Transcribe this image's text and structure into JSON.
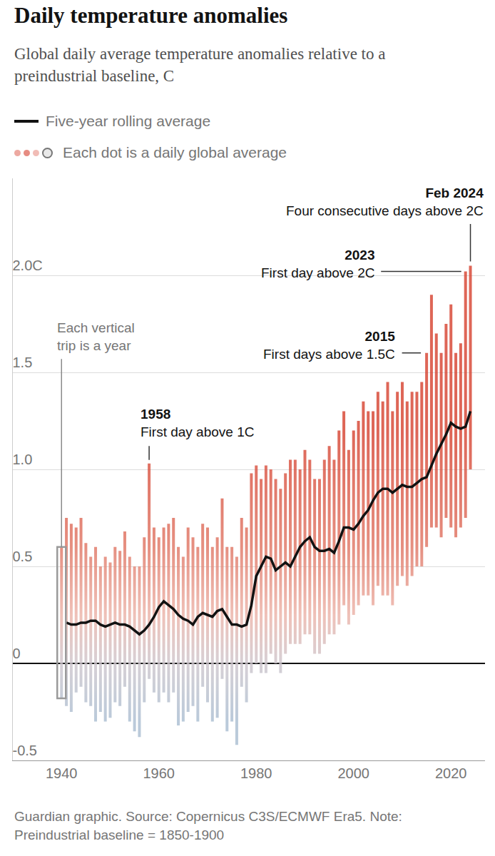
{
  "chart_data": {
    "type": "scatter",
    "title": "Daily temperature anomalies",
    "subtitle": "Global daily average temperature anomalies relative to a preindustrial baseline, C",
    "source": "Guardian graphic. Source: Copernicus C3S/ECMWF Era5. Note: Preindustrial baseline = 1850-1900",
    "x": [
      1940,
      1941,
      1942,
      1943,
      1944,
      1945,
      1946,
      1947,
      1948,
      1949,
      1950,
      1951,
      1952,
      1953,
      1954,
      1955,
      1956,
      1957,
      1958,
      1959,
      1960,
      1961,
      1962,
      1963,
      1964,
      1965,
      1966,
      1967,
      1968,
      1969,
      1970,
      1971,
      1972,
      1973,
      1974,
      1975,
      1976,
      1977,
      1978,
      1979,
      1980,
      1981,
      1982,
      1983,
      1984,
      1985,
      1986,
      1987,
      1988,
      1989,
      1990,
      1991,
      1992,
      1993,
      1994,
      1995,
      1996,
      1997,
      1998,
      1999,
      2000,
      2001,
      2002,
      2003,
      2004,
      2005,
      2006,
      2007,
      2008,
      2009,
      2010,
      2011,
      2012,
      2013,
      2014,
      2015,
      2016,
      2017,
      2018,
      2019,
      2020,
      2021,
      2022,
      2023,
      2024
    ],
    "series": [
      {
        "name": "Five-year rolling average",
        "type": "line",
        "color": "#121212",
        "values": [
          null,
          0.21,
          0.2,
          0.2,
          0.21,
          0.21,
          0.22,
          0.22,
          0.2,
          0.19,
          0.2,
          0.21,
          0.2,
          0.2,
          0.19,
          0.17,
          0.15,
          0.17,
          0.2,
          0.24,
          0.29,
          0.32,
          0.3,
          0.28,
          0.25,
          0.23,
          0.22,
          0.2,
          0.24,
          0.26,
          0.25,
          0.24,
          0.27,
          0.28,
          0.24,
          0.2,
          0.2,
          0.19,
          0.2,
          0.3,
          0.45,
          0.5,
          0.55,
          0.54,
          0.48,
          0.5,
          0.52,
          0.5,
          0.55,
          0.6,
          0.63,
          0.65,
          0.6,
          0.58,
          0.58,
          0.59,
          0.57,
          0.63,
          0.7,
          0.7,
          0.69,
          0.72,
          0.76,
          0.79,
          0.84,
          0.88,
          0.9,
          0.9,
          0.88,
          0.9,
          0.92,
          0.91,
          0.91,
          0.93,
          0.95,
          0.96,
          1.02,
          1.08,
          1.13,
          1.18,
          1.24,
          1.22,
          1.21,
          1.22,
          1.3
        ]
      },
      {
        "name": "Each dot is a daily global average",
        "type": "range",
        "color": "#d6402e",
        "values": [
          [
            -0.18,
            0.6
          ],
          [
            -0.22,
            0.75
          ],
          [
            -0.25,
            0.72
          ],
          [
            -0.15,
            0.7
          ],
          [
            -0.12,
            0.75
          ],
          [
            -0.2,
            0.62
          ],
          [
            -0.22,
            0.55
          ],
          [
            -0.3,
            0.6
          ],
          [
            -0.25,
            0.5
          ],
          [
            -0.3,
            0.55
          ],
          [
            -0.28,
            0.52
          ],
          [
            -0.2,
            0.6
          ],
          [
            -0.22,
            0.58
          ],
          [
            -0.12,
            0.68
          ],
          [
            -0.3,
            0.55
          ],
          [
            -0.35,
            0.5
          ],
          [
            -0.38,
            0.5
          ],
          [
            -0.2,
            0.65
          ],
          [
            -0.08,
            1.03
          ],
          [
            -0.15,
            0.7
          ],
          [
            -0.2,
            0.65
          ],
          [
            -0.15,
            0.7
          ],
          [
            -0.2,
            0.72
          ],
          [
            -0.15,
            0.75
          ],
          [
            -0.32,
            0.6
          ],
          [
            -0.3,
            0.55
          ],
          [
            -0.25,
            0.7
          ],
          [
            -0.22,
            0.65
          ],
          [
            -0.3,
            0.6
          ],
          [
            -0.12,
            0.72
          ],
          [
            -0.2,
            0.7
          ],
          [
            -0.3,
            0.6
          ],
          [
            -0.28,
            0.65
          ],
          [
            -0.08,
            0.85
          ],
          [
            -0.35,
            0.6
          ],
          [
            -0.3,
            0.6
          ],
          [
            -0.42,
            0.55
          ],
          [
            -0.12,
            0.75
          ],
          [
            -0.2,
            0.7
          ],
          [
            -0.05,
            0.98
          ],
          [
            0.0,
            1.02
          ],
          [
            -0.05,
            0.95
          ],
          [
            -0.05,
            1.02
          ],
          [
            0.05,
            1.0
          ],
          [
            0.0,
            0.95
          ],
          [
            -0.05,
            0.9
          ],
          [
            0.05,
            0.98
          ],
          [
            0.1,
            1.05
          ],
          [
            0.1,
            1.05
          ],
          [
            0.1,
            1.0
          ],
          [
            0.15,
            1.1
          ],
          [
            0.15,
            1.05
          ],
          [
            0.05,
            0.95
          ],
          [
            0.05,
            0.95
          ],
          [
            0.1,
            1.05
          ],
          [
            0.15,
            1.12
          ],
          [
            0.15,
            1.05
          ],
          [
            0.2,
            1.2
          ],
          [
            0.3,
            1.3
          ],
          [
            0.2,
            1.1
          ],
          [
            0.25,
            1.2
          ],
          [
            0.3,
            1.25
          ],
          [
            0.35,
            1.35
          ],
          [
            0.35,
            1.3
          ],
          [
            0.3,
            1.3
          ],
          [
            0.4,
            1.4
          ],
          [
            0.35,
            1.35
          ],
          [
            0.35,
            1.45
          ],
          [
            0.3,
            1.3
          ],
          [
            0.4,
            1.4
          ],
          [
            0.45,
            1.45
          ],
          [
            0.4,
            1.35
          ],
          [
            0.45,
            1.4
          ],
          [
            0.5,
            1.4
          ],
          [
            0.5,
            1.45
          ],
          [
            0.6,
            1.6
          ],
          [
            0.7,
            1.9
          ],
          [
            0.7,
            1.7
          ],
          [
            0.65,
            1.6
          ],
          [
            0.75,
            1.75
          ],
          [
            0.7,
            1.85
          ],
          [
            0.65,
            1.6
          ],
          [
            0.7,
            1.65
          ],
          [
            0.75,
            2.02
          ],
          [
            1.0,
            2.05
          ]
        ]
      }
    ],
    "xlim": [
      1930,
      2027
    ],
    "xticks": [
      1940,
      1960,
      1980,
      2000,
      2020
    ],
    "ylim": [
      -0.5,
      2.5
    ],
    "yticks": [
      -0.5,
      0,
      0.5,
      {
        "value": 1,
        "label": "1.0"
      },
      1.5,
      {
        "value": 2,
        "label": "2.0C"
      }
    ],
    "grid": true,
    "annotations": [
      {
        "text": [
          "Each vertical",
          "trip is a year"
        ],
        "x": 1940,
        "y": 0.6
      },
      {
        "label": "1958",
        "text": "First day above 1C",
        "x": 1958,
        "y": 1.03
      },
      {
        "label": "2015",
        "text": "First days above 1.5C",
        "x": 2015,
        "y": 1.6
      },
      {
        "label": "2023",
        "text": "First day above 2C",
        "x": 2023,
        "y": 2.02
      },
      {
        "label": "Feb 2024",
        "text": "Four consecutive days above 2C",
        "x": 2024,
        "y": 2.05
      }
    ]
  }
}
